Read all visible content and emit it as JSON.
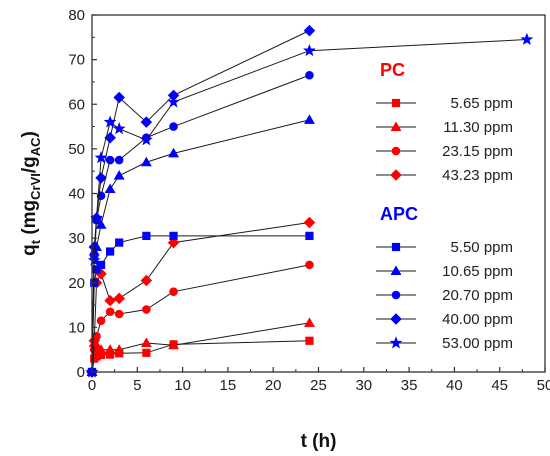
{
  "chart_data": {
    "type": "scatter",
    "xlabel": "t (h)",
    "ylabel_main": "q",
    "ylabel_sub1": "t",
    "ylabel_mid1": " (mg",
    "ylabel_sub2": "CrVI",
    "ylabel_mid2": "/g",
    "ylabel_sub3": "AC",
    "ylabel_end": ")",
    "xlim": [
      0,
      50
    ],
    "ylim": [
      0,
      80
    ],
    "xticks": [
      0,
      5,
      10,
      15,
      20,
      25,
      30,
      35,
      40,
      45,
      50
    ],
    "yticks": [
      0,
      10,
      20,
      30,
      40,
      50,
      60,
      70,
      80
    ],
    "grid": false,
    "legend_position": "right",
    "groups": [
      {
        "title": "PC",
        "color": "#ff0000",
        "series": [
          {
            "name": "5.65 ppm",
            "marker": "square",
            "x": [
              0,
              0.25,
              0.5,
              1,
              2,
              3,
              6,
              9,
              24
            ],
            "y": [
              0,
              3,
              3.5,
              3.8,
              3.9,
              4.2,
              4.3,
              6.2,
              7
            ]
          },
          {
            "name": "11.30 ppm",
            "marker": "triangle",
            "x": [
              0,
              0.25,
              0.5,
              1,
              2,
              3,
              6,
              9,
              24
            ],
            "y": [
              0,
              6.5,
              6,
              5,
              5,
              5,
              6.5,
              6,
              11
            ]
          },
          {
            "name": "23.15 ppm",
            "marker": "circle",
            "x": [
              0,
              0.25,
              0.5,
              1,
              2,
              3,
              6,
              9,
              24
            ],
            "y": [
              0,
              5,
              8,
              11.5,
              13.5,
              13,
              14,
              18,
              24
            ]
          },
          {
            "name": "43.23 ppm",
            "marker": "diamond",
            "x": [
              0,
              0.25,
              0.5,
              1,
              2,
              3,
              6,
              9,
              24
            ],
            "y": [
              0,
              7,
              20,
              22,
              16,
              16.5,
              20.5,
              29,
              33.5
            ]
          }
        ]
      },
      {
        "title": "APC",
        "color": "#0000ff",
        "series": [
          {
            "name": "5.50 ppm",
            "marker": "square",
            "x": [
              0,
              0.25,
              0.5,
              1,
              2,
              3,
              6,
              9,
              24
            ],
            "y": [
              0,
              20,
              23,
              24,
              27,
              29,
              30.5,
              30.5,
              30.5
            ]
          },
          {
            "name": "10.65 ppm",
            "marker": "triangle",
            "x": [
              0,
              0.25,
              0.5,
              1,
              2,
              3,
              6,
              9,
              24
            ],
            "y": [
              0,
              27,
              28,
              33,
              41,
              44,
              47,
              49,
              56.5
            ]
          },
          {
            "name": "20.70 ppm",
            "marker": "circle",
            "x": [
              0,
              0.25,
              0.5,
              1,
              2,
              3,
              6,
              9,
              24
            ],
            "y": [
              0,
              26,
              34,
              39.5,
              47.5,
              47.5,
              52.5,
              55,
              66.5
            ]
          },
          {
            "name": "40.00 ppm",
            "marker": "diamond",
            "x": [
              0,
              0.25,
              0.5,
              1,
              2,
              3,
              6,
              9,
              24
            ],
            "y": [
              0,
              28,
              34.5,
              43.5,
              52.5,
              61.5,
              56,
              62,
              76.5
            ]
          },
          {
            "name": "53.00 ppm",
            "marker": "star",
            "x": [
              0,
              0.25,
              0.5,
              1,
              2,
              3,
              6,
              9,
              24,
              48
            ],
            "y": [
              0,
              25,
              34.5,
              48,
              56,
              54.5,
              52,
              60.5,
              72,
              74.5
            ]
          }
        ]
      }
    ]
  }
}
